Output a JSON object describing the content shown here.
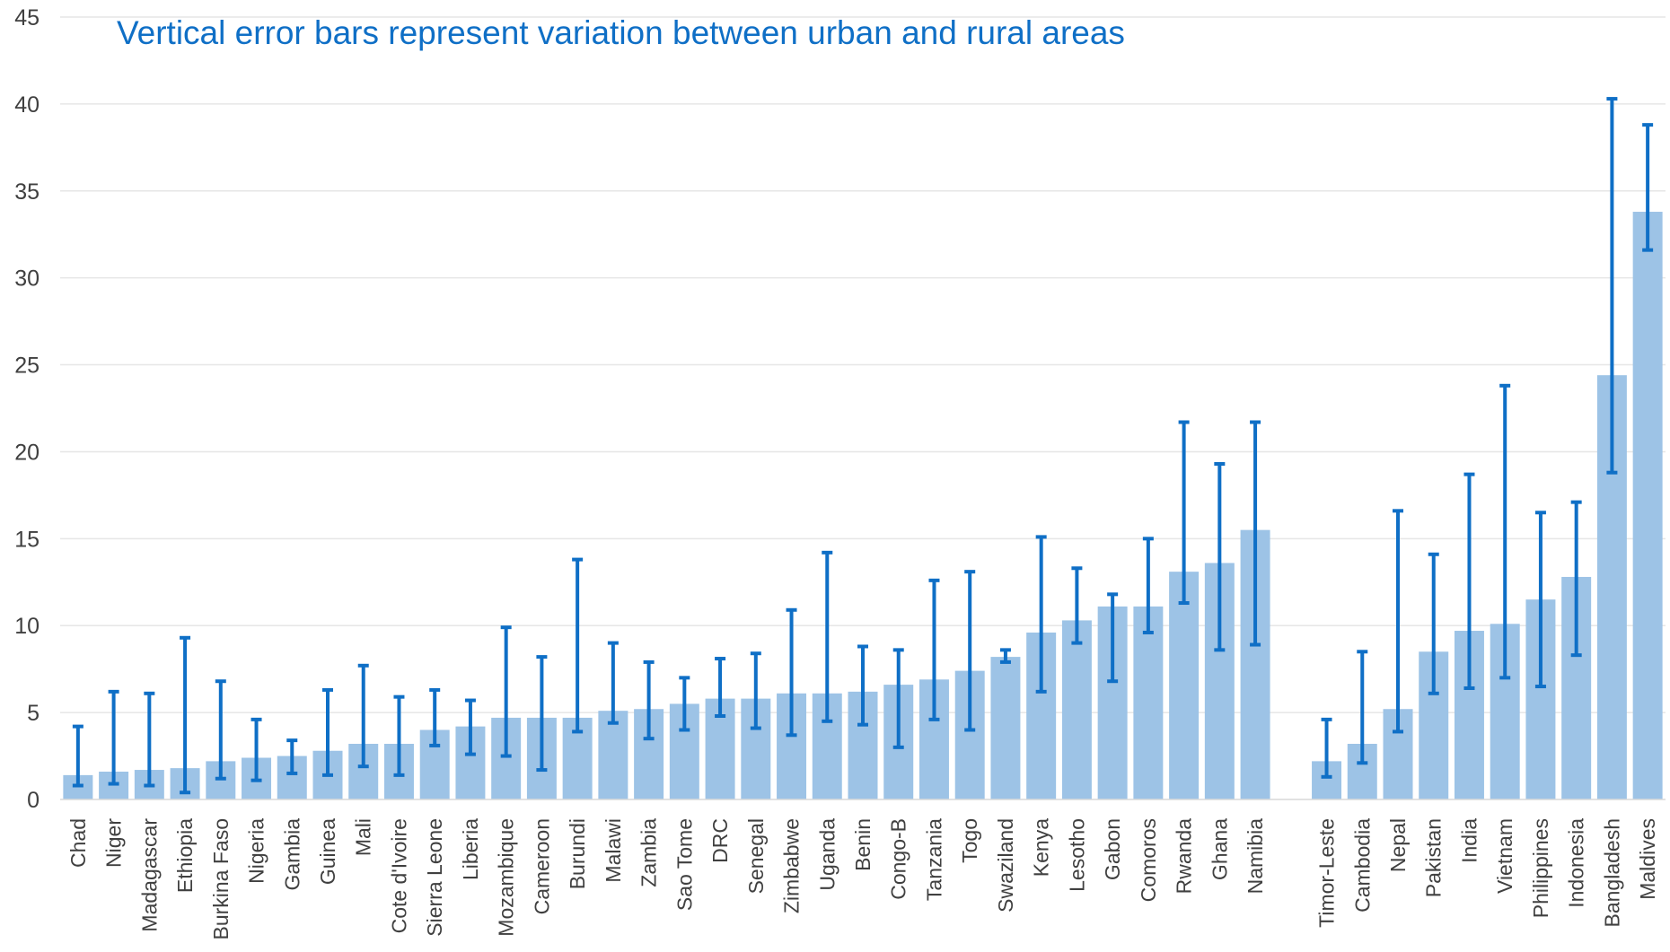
{
  "chart_data": {
    "type": "bar",
    "title": "Vertical error bars represent variation between urban and rural areas",
    "xlabel": "",
    "ylabel": "",
    "ylim": [
      0,
      45
    ],
    "yticks": [
      0,
      5,
      10,
      15,
      20,
      25,
      30,
      35,
      40,
      45
    ],
    "grid": true,
    "legend": "none",
    "bar_color": "#9DC3E6",
    "error_bar_color": "#0F6FC6",
    "title_color": "#0F6FC6",
    "categories": [
      "Chad",
      "Niger",
      "Madagascar",
      "Ethiopia",
      "Burkina Faso",
      "Nigeria",
      "Gambia",
      "Guinea",
      "Mali",
      "Cote d'Ivoire",
      "Sierra Leone",
      "Liberia",
      "Mozambique",
      "Cameroon",
      "Burundi",
      "Malawi",
      "Zambia",
      "Sao Tome",
      "DRC",
      "Senegal",
      "Zimbabwe",
      "Uganda",
      "Benin",
      "Congo-B",
      "Tanzania",
      "Togo",
      "Swaziland",
      "Kenya",
      "Lesotho",
      "Gabon",
      "Comoros",
      "Rwanda",
      "Ghana",
      "Namibia",
      "",
      "Timor-Leste",
      "Cambodia",
      "Nepal",
      "Pakistan",
      "India",
      "Vietnam",
      "Philippines",
      "Indonesia",
      "Bangladesh",
      "Maldives"
    ],
    "values": [
      1.4,
      1.6,
      1.7,
      1.8,
      2.2,
      2.4,
      2.5,
      2.8,
      3.2,
      3.2,
      4.0,
      4.2,
      4.7,
      4.7,
      4.7,
      5.1,
      5.2,
      5.5,
      5.8,
      5.8,
      6.1,
      6.1,
      6.2,
      6.6,
      6.9,
      7.4,
      8.2,
      9.6,
      10.3,
      11.1,
      11.1,
      13.1,
      13.6,
      15.5,
      null,
      2.2,
      3.2,
      5.2,
      8.5,
      9.7,
      10.1,
      11.5,
      12.8,
      24.4,
      33.8
    ],
    "error_low": [
      0.8,
      0.9,
      0.8,
      0.4,
      1.2,
      1.1,
      1.5,
      1.4,
      1.9,
      1.4,
      3.1,
      2.6,
      2.5,
      1.7,
      3.9,
      4.4,
      3.5,
      4.0,
      4.8,
      4.1,
      3.7,
      4.5,
      4.3,
      3.0,
      4.6,
      4.0,
      7.9,
      6.2,
      9.0,
      6.8,
      9.6,
      11.3,
      8.6,
      8.9,
      null,
      1.3,
      2.1,
      3.9,
      6.1,
      6.4,
      7.0,
      6.5,
      8.3,
      18.8,
      31.6
    ],
    "error_high": [
      4.2,
      6.2,
      6.1,
      9.3,
      6.8,
      4.6,
      3.4,
      6.3,
      7.7,
      5.9,
      6.3,
      5.7,
      9.9,
      8.2,
      13.8,
      9.0,
      7.9,
      7.0,
      8.1,
      8.4,
      10.9,
      14.2,
      8.8,
      8.6,
      12.6,
      13.1,
      8.6,
      15.1,
      13.3,
      11.8,
      15.0,
      21.7,
      19.3,
      21.7,
      null,
      4.6,
      8.5,
      16.6,
      14.1,
      18.7,
      23.8,
      16.5,
      17.1,
      40.3,
      38.8
    ]
  }
}
